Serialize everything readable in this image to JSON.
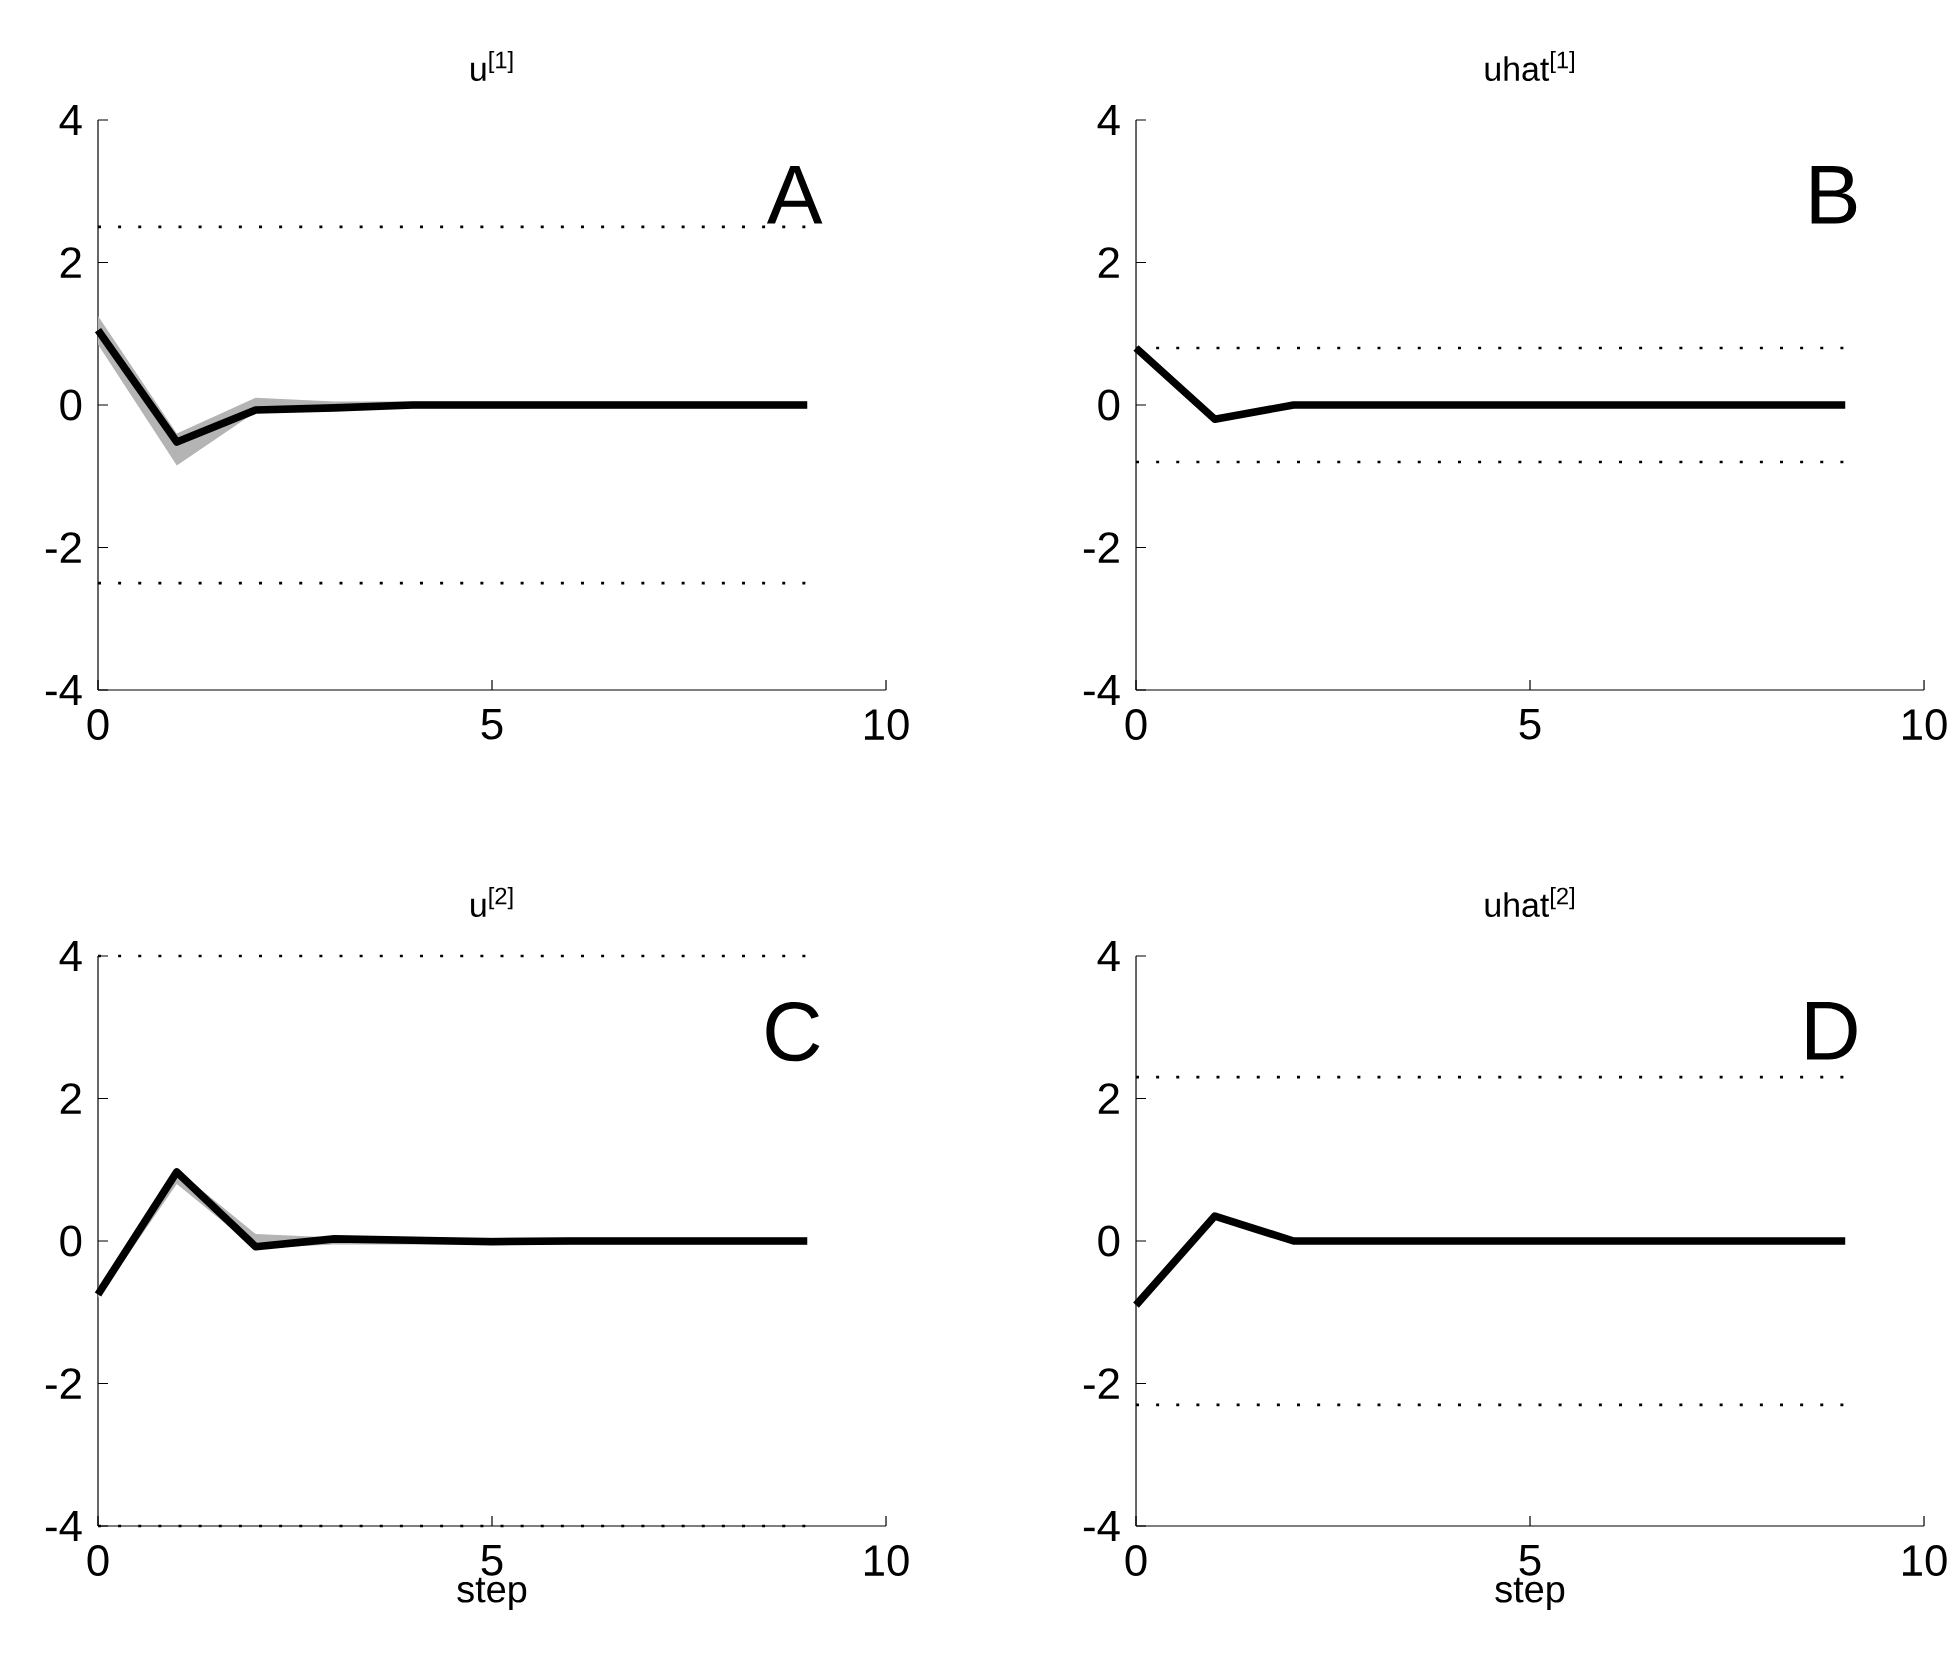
{
  "chart_data": [
    {
      "type": "line",
      "title": "u$^{[1]}$",
      "annotations": [
        "A"
      ],
      "x": [
        0,
        1,
        2,
        3,
        4,
        5,
        6,
        7,
        8,
        9
      ],
      "xlim": [
        0,
        10
      ],
      "ylim": [
        -4,
        4
      ],
      "xticks": [
        0,
        5,
        10
      ],
      "yticks": [
        -4,
        -2,
        0,
        2,
        4
      ],
      "series": [
        {
          "color": "#000000",
          "values": [
            1.05,
            -0.52,
            -0.07,
            -0.04,
            0.0,
            0.0,
            0.0,
            0.0,
            0.0,
            0.0
          ],
          "lower": [
            0.85,
            -0.85,
            -0.1,
            -0.05,
            -0.05,
            -0.05,
            -0.05,
            -0.05,
            -0.05,
            -0.05
          ],
          "upper": [
            1.25,
            -0.4,
            0.1,
            0.05,
            0.05,
            0.05,
            0.05,
            0.05,
            0.05,
            0.05
          ]
        }
      ],
      "ref_lines": [
        {
          "axis": "y",
          "value": 2.5,
          "color": "#000000",
          "line_style": "dotted"
        },
        {
          "axis": "y",
          "value": -2.5,
          "color": "#000000",
          "line_style": "dotted"
        }
      ]
    },
    {
      "type": "line",
      "title": "uhat$^{[1]}$",
      "annotations": [
        "B"
      ],
      "x": [
        0,
        1,
        2,
        3,
        4,
        5,
        6,
        7,
        8,
        9
      ],
      "xlim": [
        0,
        10
      ],
      "ylim": [
        -4,
        4
      ],
      "xticks": [
        0,
        5,
        10
      ],
      "yticks": [
        -4,
        -2,
        0,
        2,
        4
      ],
      "series": [
        {
          "color": "#000000",
          "values": [
            0.8,
            -0.2,
            0.0,
            0.0,
            0.0,
            0.0,
            0.0,
            0.0,
            0.0,
            0.0
          ]
        }
      ],
      "ref_lines": [
        {
          "axis": "y",
          "value": 0.8,
          "color": "#000000",
          "line_style": "dotted"
        },
        {
          "axis": "y",
          "value": -0.8,
          "color": "#000000",
          "line_style": "dotted"
        }
      ]
    },
    {
      "type": "line",
      "title": "u$^{[2]}$",
      "annotations": [
        "C"
      ],
      "xlabel": "step",
      "x": [
        0,
        1,
        2,
        3,
        4,
        5,
        6,
        7,
        8,
        9
      ],
      "xlim": [
        0,
        10
      ],
      "ylim": [
        -4,
        4
      ],
      "xticks": [
        0,
        5,
        10
      ],
      "yticks": [
        -4,
        -2,
        0,
        2,
        4
      ],
      "series": [
        {
          "color": "#000000",
          "values": [
            -0.75,
            0.97,
            -0.08,
            0.03,
            0.01,
            -0.01,
            0.0,
            0.0,
            0.0,
            0.0
          ],
          "lower": [
            -0.8,
            0.8,
            -0.1,
            -0.05,
            -0.05,
            -0.05,
            -0.05,
            -0.05,
            -0.05,
            -0.05
          ],
          "upper": [
            -0.65,
            1.0,
            0.1,
            0.05,
            0.05,
            0.05,
            0.05,
            0.05,
            0.05,
            0.05
          ]
        }
      ],
      "ref_lines": [
        {
          "axis": "y",
          "value": 4,
          "color": "#000000",
          "line_style": "dotted"
        },
        {
          "axis": "y",
          "value": -4,
          "color": "#000000",
          "line_style": "dotted"
        }
      ]
    },
    {
      "type": "line",
      "title": "uhat$^{[2]}$",
      "annotations": [
        "D"
      ],
      "xlabel": "step",
      "x": [
        0,
        1,
        2,
        3,
        4,
        5,
        6,
        7,
        8,
        9
      ],
      "xlim": [
        0,
        10
      ],
      "ylim": [
        -4,
        4
      ],
      "xticks": [
        0,
        5,
        10
      ],
      "yticks": [
        -4,
        -2,
        0,
        2,
        4
      ],
      "series": [
        {
          "color": "#000000",
          "values": [
            -0.9,
            0.35,
            0.0,
            0.0,
            0.0,
            0.0,
            0.0,
            0.0,
            0.0,
            0.0
          ]
        }
      ],
      "ref_lines": [
        {
          "axis": "y",
          "value": 2.3,
          "color": "#000000",
          "line_style": "dotted"
        },
        {
          "axis": "y",
          "value": -2.3,
          "color": "#000000",
          "line_style": "dotted"
        }
      ]
    }
  ]
}
